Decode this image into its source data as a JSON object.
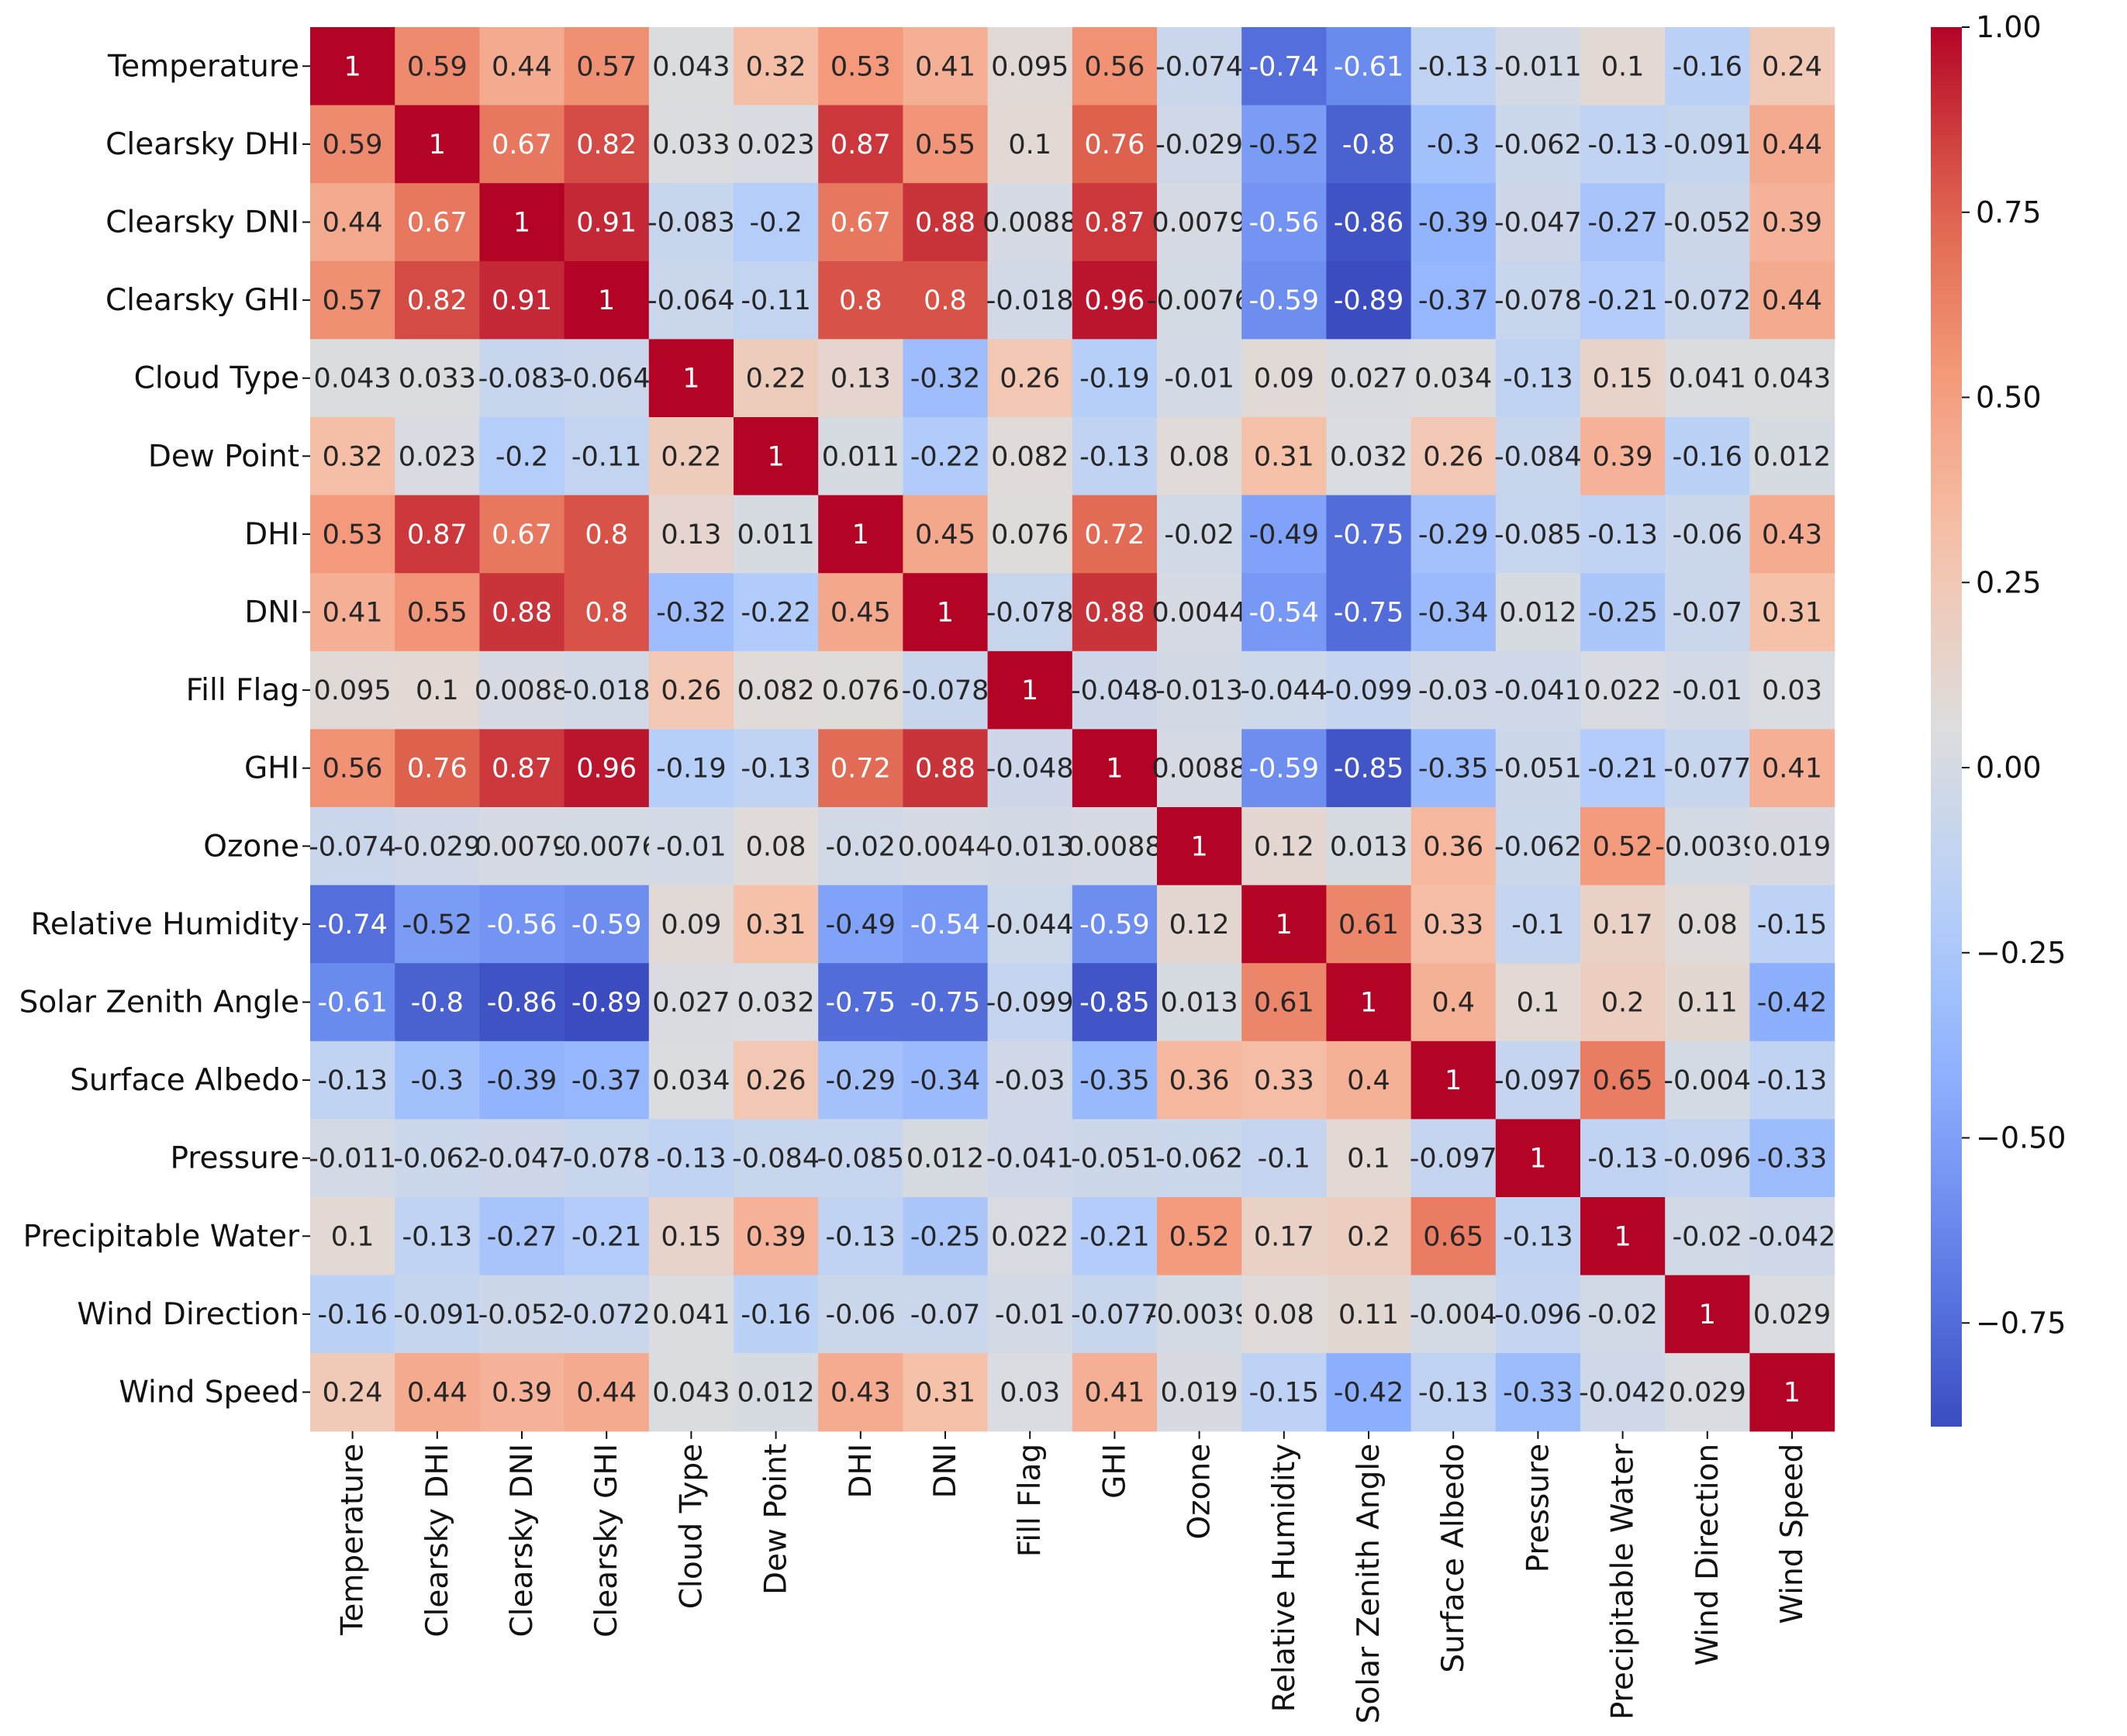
{
  "chart_data": {
    "type": "heatmap",
    "title": "",
    "xlabel": "",
    "ylabel": "",
    "labels": [
      "Temperature",
      "Clearsky DHI",
      "Clearsky DNI",
      "Clearsky GHI",
      "Cloud Type",
      "Dew Point",
      "DHI",
      "DNI",
      "Fill Flag",
      "GHI",
      "Ozone",
      "Relative Humidity",
      "Solar Zenith Angle",
      "Surface Albedo",
      "Pressure",
      "Precipitable Water",
      "Wind Direction",
      "Wind Speed"
    ],
    "values": [
      [
        1,
        0.59,
        0.44,
        0.57,
        0.043,
        0.32,
        0.53,
        0.41,
        0.095,
        0.56,
        -0.074,
        -0.74,
        -0.61,
        -0.13,
        -0.011,
        0.1,
        -0.16,
        0.24
      ],
      [
        0.59,
        1,
        0.67,
        0.82,
        0.033,
        0.023,
        0.87,
        0.55,
        0.1,
        0.76,
        -0.029,
        -0.52,
        -0.8,
        -0.3,
        -0.062,
        -0.13,
        -0.091,
        0.44
      ],
      [
        0.44,
        0.67,
        1,
        0.91,
        -0.083,
        -0.2,
        0.67,
        0.88,
        0.0088,
        0.87,
        0.0079,
        -0.56,
        -0.86,
        -0.39,
        -0.047,
        -0.27,
        -0.052,
        0.39
      ],
      [
        0.57,
        0.82,
        0.91,
        1,
        -0.064,
        -0.11,
        0.8,
        0.8,
        -0.018,
        0.96,
        -0.0076,
        -0.59,
        -0.89,
        -0.37,
        -0.078,
        -0.21,
        -0.072,
        0.44
      ],
      [
        0.043,
        0.033,
        -0.083,
        -0.064,
        1,
        0.22,
        0.13,
        -0.32,
        0.26,
        -0.19,
        -0.01,
        0.09,
        0.027,
        0.034,
        -0.13,
        0.15,
        0.041,
        0.043
      ],
      [
        0.32,
        0.023,
        -0.2,
        -0.11,
        0.22,
        1,
        0.011,
        -0.22,
        0.082,
        -0.13,
        0.08,
        0.31,
        0.032,
        0.26,
        -0.084,
        0.39,
        -0.16,
        0.012
      ],
      [
        0.53,
        0.87,
        0.67,
        0.8,
        0.13,
        0.011,
        1,
        0.45,
        0.076,
        0.72,
        -0.02,
        -0.49,
        -0.75,
        -0.29,
        -0.085,
        -0.13,
        -0.06,
        0.43
      ],
      [
        0.41,
        0.55,
        0.88,
        0.8,
        -0.32,
        -0.22,
        0.45,
        1,
        -0.078,
        0.88,
        0.0044,
        -0.54,
        -0.75,
        -0.34,
        0.012,
        -0.25,
        -0.07,
        0.31
      ],
      [
        0.095,
        0.1,
        0.0088,
        -0.018,
        0.26,
        0.082,
        0.076,
        -0.078,
        1,
        -0.048,
        -0.013,
        -0.044,
        -0.099,
        -0.03,
        -0.041,
        0.022,
        -0.01,
        0.03
      ],
      [
        0.56,
        0.76,
        0.87,
        0.96,
        -0.19,
        -0.13,
        0.72,
        0.88,
        -0.048,
        1,
        0.0088,
        -0.59,
        -0.85,
        -0.35,
        -0.051,
        -0.21,
        -0.077,
        0.41
      ],
      [
        -0.074,
        -0.029,
        0.0079,
        -0.0076,
        -0.01,
        0.08,
        -0.02,
        0.0044,
        -0.013,
        0.0088,
        1,
        0.12,
        0.013,
        0.36,
        -0.062,
        0.52,
        -0.0039,
        0.019
      ],
      [
        -0.74,
        -0.52,
        -0.56,
        -0.59,
        0.09,
        0.31,
        -0.49,
        -0.54,
        -0.044,
        -0.59,
        0.12,
        1,
        0.61,
        0.33,
        -0.1,
        0.17,
        0.08,
        -0.15
      ],
      [
        -0.61,
        -0.8,
        -0.86,
        -0.89,
        0.027,
        0.032,
        -0.75,
        -0.75,
        -0.099,
        -0.85,
        0.013,
        0.61,
        1,
        0.4,
        0.1,
        0.2,
        0.11,
        -0.42
      ],
      [
        -0.13,
        -0.3,
        -0.39,
        -0.37,
        0.034,
        0.26,
        -0.29,
        -0.34,
        -0.03,
        -0.35,
        0.36,
        0.33,
        0.4,
        1,
        -0.097,
        0.65,
        -0.004,
        -0.13
      ],
      [
        -0.011,
        -0.062,
        -0.047,
        -0.078,
        -0.13,
        -0.084,
        -0.085,
        0.012,
        -0.041,
        -0.051,
        -0.062,
        -0.1,
        0.1,
        -0.097,
        1,
        -0.13,
        -0.096,
        -0.33
      ],
      [
        0.1,
        -0.13,
        -0.27,
        -0.21,
        0.15,
        0.39,
        -0.13,
        -0.25,
        0.022,
        -0.21,
        0.52,
        0.17,
        0.2,
        0.65,
        -0.13,
        1,
        -0.02,
        -0.042
      ],
      [
        -0.16,
        -0.091,
        -0.052,
        -0.072,
        0.041,
        -0.16,
        -0.06,
        -0.07,
        -0.01,
        -0.077,
        -0.0039,
        0.08,
        0.11,
        -0.004,
        -0.096,
        -0.02,
        1,
        0.029
      ],
      [
        0.24,
        0.44,
        0.39,
        0.44,
        0.043,
        0.012,
        0.43,
        0.31,
        0.03,
        0.41,
        0.019,
        -0.15,
        -0.42,
        -0.13,
        -0.33,
        -0.042,
        0.029,
        1
      ]
    ],
    "value_range": [
      -0.89,
      1.0
    ],
    "colormap": "coolwarm",
    "colorbar": {
      "ticks": [
        1.0,
        0.75,
        0.5,
        0.25,
        0.0,
        -0.25,
        -0.5,
        -0.75
      ],
      "tick_labels": [
        "1.00",
        "0.75",
        "0.50",
        "0.25",
        "0.00",
        "−0.25",
        "−0.50",
        "−0.75"
      ]
    },
    "annotations": true,
    "grid": false,
    "legend_position": "right"
  }
}
